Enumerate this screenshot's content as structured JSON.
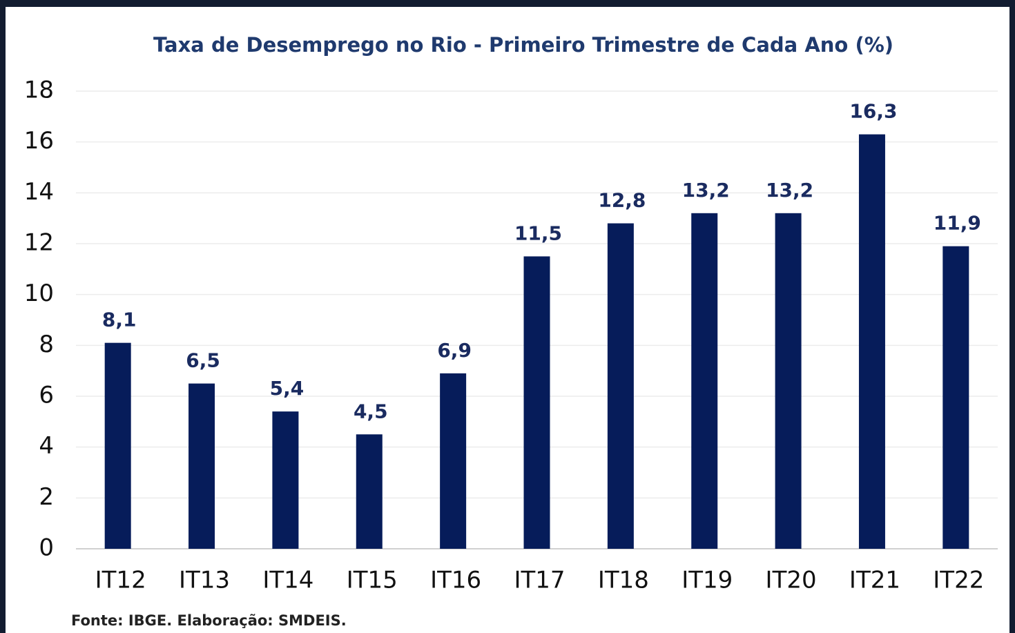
{
  "chart_data": {
    "type": "bar",
    "title": "Taxa de Desemprego no Rio - Primeiro Trimestre de Cada Ano (%)",
    "categories": [
      "IT12",
      "IT13",
      "IT14",
      "IT15",
      "IT16",
      "IT17",
      "IT18",
      "IT19",
      "IT20",
      "IT21",
      "IT22"
    ],
    "values": [
      8.1,
      6.5,
      5.4,
      4.5,
      6.9,
      11.5,
      12.8,
      13.2,
      13.2,
      16.3,
      11.9
    ],
    "value_labels": [
      "8,1",
      "6,5",
      "5,4",
      "4,5",
      "6,9",
      "11,5",
      "12,8",
      "13,2",
      "13,2",
      "16,3",
      "11,9"
    ],
    "color": "#061c5a",
    "ylim": [
      0,
      18
    ],
    "yticks": [
      0,
      2,
      4,
      6,
      8,
      10,
      12,
      14,
      16,
      18
    ],
    "grid": true,
    "source": "Fonte: IBGE. Elaboração: SMDEIS."
  }
}
